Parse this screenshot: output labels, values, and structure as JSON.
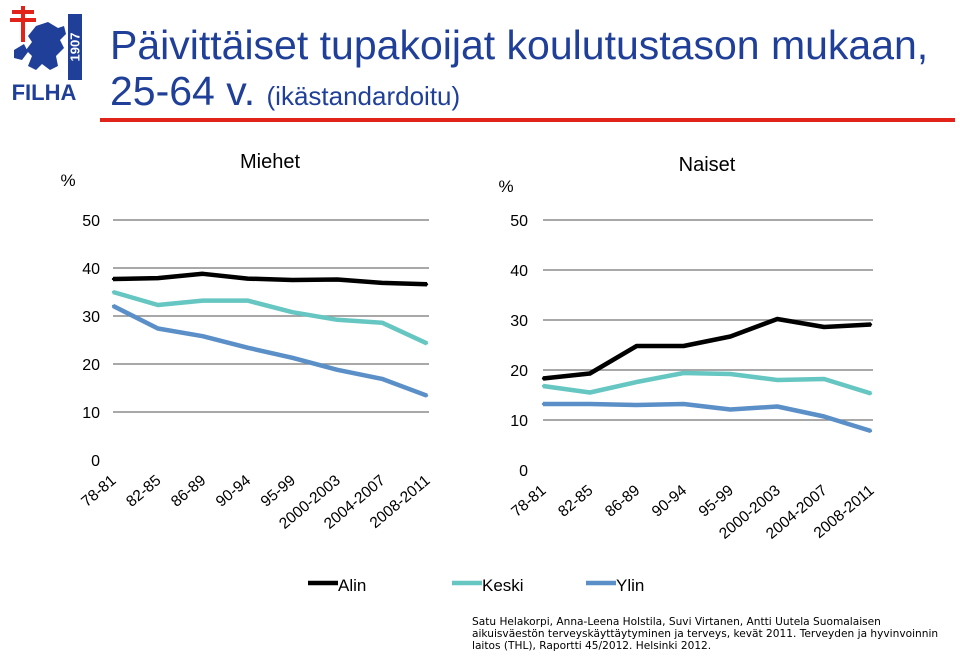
{
  "logo": {
    "word": "FILHA",
    "year": "1907"
  },
  "title": {
    "line1": "Päivittäiset tupakoijat koulutustason mukaan,",
    "line2_main": "25-64 v.",
    "line2_suffix": "(ikästandardoitu)"
  },
  "colors": {
    "title": "#1f3f99",
    "accent_line": "#e2231a",
    "Alin": "#000000",
    "Keski": "#66c6c2",
    "Ylin": "#5b8fc7"
  },
  "legend": [
    "Alin",
    "Keski",
    "Ylin"
  ],
  "source": [
    "Satu Helakorpi, Anna-Leena Holstila, Suvi Virtanen, Antti Uutela Suomalaisen",
    "aikuisväestön terveyskäyttäytyminen ja terveys, kevät 2011. Terveyden ja hyvinvoinnin",
    "laitos (THL), Raportti 45/2012. Helsinki 2012."
  ],
  "chart_data": [
    {
      "type": "line",
      "title": "Miehet",
      "ylabel": "%",
      "ylim": [
        0,
        50
      ],
      "yticks": [
        0,
        10,
        20,
        30,
        40,
        50
      ],
      "grid": true,
      "categories": [
        "78-81",
        "82-85",
        "86-89",
        "90-94",
        "95-99",
        "2000-2003",
        "2004-2007",
        "2008-2011"
      ],
      "series": [
        {
          "name": "Alin",
          "values": [
            37.7,
            37.9,
            38.8,
            37.8,
            37.5,
            37.6,
            36.9,
            36.6
          ]
        },
        {
          "name": "Keski",
          "values": [
            35.0,
            32.3,
            33.2,
            33.2,
            30.8,
            29.2,
            28.6,
            24.3
          ]
        },
        {
          "name": "Ylin",
          "values": [
            32.1,
            27.4,
            25.8,
            23.4,
            21.3,
            18.8,
            16.9,
            13.4
          ]
        }
      ]
    },
    {
      "type": "line",
      "title": "Naiset",
      "ylabel": "%",
      "ylim": [
        0,
        50
      ],
      "yticks": [
        0,
        10,
        20,
        30,
        40,
        50
      ],
      "grid": true,
      "categories": [
        "78-81",
        "82-85",
        "86-89",
        "90-94",
        "95-99",
        "2000-2003",
        "2004-2007",
        "2008-2011"
      ],
      "series": [
        {
          "name": "Alin",
          "values": [
            18.3,
            19.3,
            24.8,
            24.8,
            26.7,
            30.2,
            28.6,
            29.1
          ]
        },
        {
          "name": "Keski",
          "values": [
            16.8,
            15.5,
            17.6,
            19.4,
            19.2,
            18.0,
            18.2,
            15.3
          ]
        },
        {
          "name": "Ylin",
          "values": [
            13.2,
            13.2,
            13.0,
            13.2,
            12.1,
            12.7,
            10.7,
            7.8
          ]
        }
      ]
    }
  ]
}
